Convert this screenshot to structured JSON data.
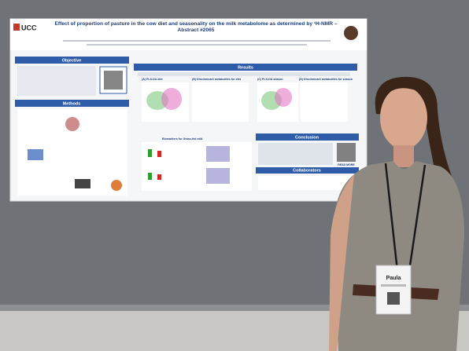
{
  "poster": {
    "logo": "UCC",
    "title": "Effect of proportion of pasture in the cow diet and seasonality on the milk metabolome as determined by ¹H-NMR – Abstract #2065",
    "sections": [
      "Objective",
      "Methods",
      "Results",
      "Conclusion",
      "Collaborators"
    ],
    "panels": [
      "(A) PLS-DA diet",
      "(B) Discriminant metabolites for diet",
      "(C) PLS-DA season",
      "(D) Discriminant metabolites for season",
      "Biomarkers for Grass-fed milk"
    ],
    "read_more": "READ MORE"
  },
  "badge": {
    "name": "Paula"
  }
}
